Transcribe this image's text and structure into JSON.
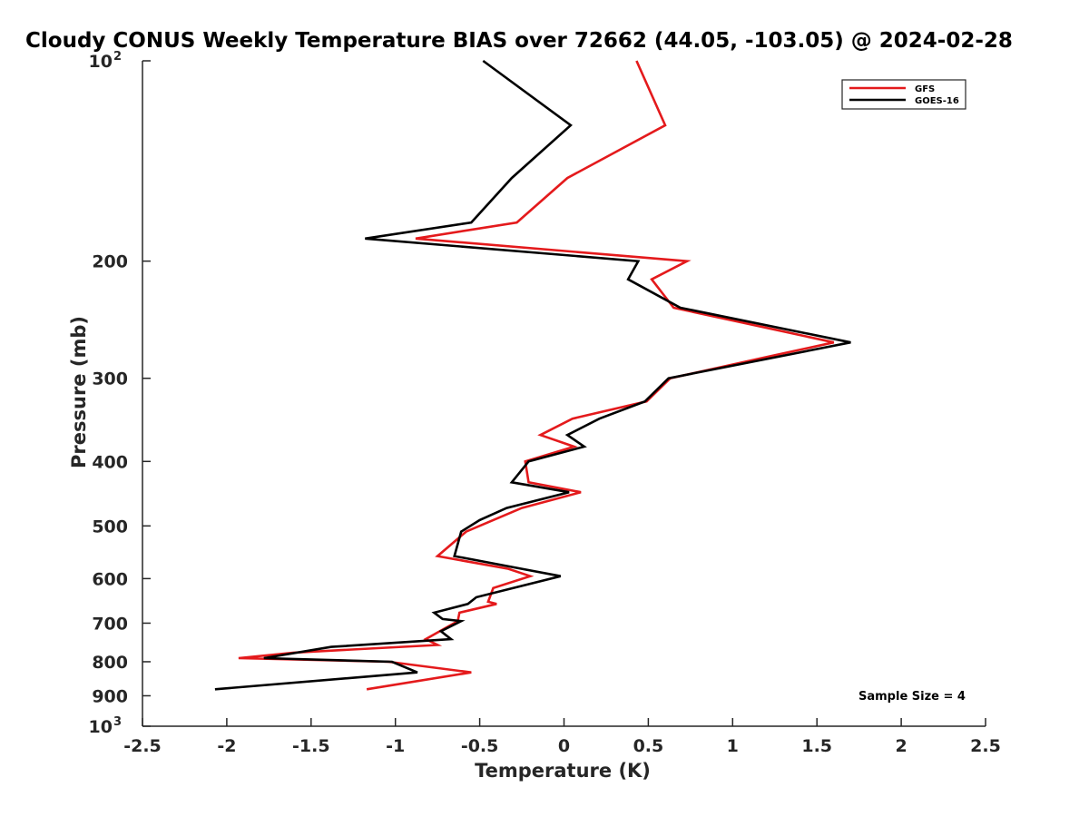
{
  "chart_data": {
    "type": "line",
    "title": "Cloudy CONUS Weekly Temperature BIAS over 72662 (44.05, -103.05) @ 2024-02-28",
    "xlabel": "Temperature (K)",
    "ylabel": "Pressure (mb)",
    "xlim": [
      -2.5,
      2.5
    ],
    "ylim": [
      100,
      1000
    ],
    "y_scale": "log",
    "y_reversed": true,
    "grid": false,
    "legend_position": "top-right",
    "x_ticks": [
      {
        "value": -2.5,
        "label": "-2.5"
      },
      {
        "value": -2,
        "label": "-2"
      },
      {
        "value": -1.5,
        "label": "-1.5"
      },
      {
        "value": -1,
        "label": "-1"
      },
      {
        "value": -0.5,
        "label": "-0.5"
      },
      {
        "value": 0,
        "label": "0"
      },
      {
        "value": 0.5,
        "label": "0.5"
      },
      {
        "value": 1,
        "label": "1"
      },
      {
        "value": 1.5,
        "label": "1.5"
      },
      {
        "value": 2,
        "label": "2"
      },
      {
        "value": 2.5,
        "label": "2.5"
      }
    ],
    "y_ticks": [
      {
        "value": 100,
        "base": "10",
        "exp": "2"
      },
      {
        "value": 200,
        "label": "200"
      },
      {
        "value": 300,
        "label": "300"
      },
      {
        "value": 400,
        "label": "400"
      },
      {
        "value": 500,
        "label": "500"
      },
      {
        "value": 600,
        "label": "600"
      },
      {
        "value": 700,
        "label": "700"
      },
      {
        "value": 800,
        "label": "800"
      },
      {
        "value": 900,
        "label": "900"
      },
      {
        "value": 1000,
        "base": "10",
        "exp": "3"
      }
    ],
    "series": [
      {
        "name": "GFS",
        "color": "#e41a1c",
        "points": [
          [
            0.43,
            100
          ],
          [
            0.6,
            125
          ],
          [
            0.02,
            150
          ],
          [
            -0.28,
            175
          ],
          [
            -0.88,
            185
          ],
          [
            0.73,
            200
          ],
          [
            0.52,
            213
          ],
          [
            0.65,
            235
          ],
          [
            1.6,
            265
          ],
          [
            1.22,
            278
          ],
          [
            0.63,
            300
          ],
          [
            0.49,
            325
          ],
          [
            0.05,
            345
          ],
          [
            -0.14,
            365
          ],
          [
            0.06,
            380
          ],
          [
            -0.23,
            400
          ],
          [
            -0.21,
            430
          ],
          [
            0.1,
            445
          ],
          [
            -0.25,
            470
          ],
          [
            -0.42,
            490
          ],
          [
            -0.58,
            510
          ],
          [
            -0.75,
            555
          ],
          [
            -0.33,
            580
          ],
          [
            -0.2,
            595
          ],
          [
            -0.42,
            620
          ],
          [
            -0.45,
            650
          ],
          [
            -0.4,
            655
          ],
          [
            -0.62,
            675
          ],
          [
            -0.63,
            695
          ],
          [
            -0.82,
            740
          ],
          [
            -0.75,
            755
          ],
          [
            -1.6,
            775
          ],
          [
            -1.93,
            790
          ],
          [
            -1.04,
            800
          ],
          [
            -0.55,
            830
          ],
          [
            -1.17,
            880
          ]
        ]
      },
      {
        "name": "GOES-16",
        "color": "#000000",
        "points": [
          [
            -0.48,
            100
          ],
          [
            0.04,
            125
          ],
          [
            -0.31,
            150
          ],
          [
            -0.55,
            175
          ],
          [
            -1.18,
            185
          ],
          [
            0.44,
            200
          ],
          [
            0.38,
            213
          ],
          [
            0.69,
            235
          ],
          [
            1.7,
            265
          ],
          [
            0.62,
            300
          ],
          [
            0.48,
            325
          ],
          [
            0.21,
            345
          ],
          [
            0.02,
            365
          ],
          [
            0.12,
            380
          ],
          [
            -0.21,
            400
          ],
          [
            -0.31,
            430
          ],
          [
            0.03,
            445
          ],
          [
            -0.34,
            470
          ],
          [
            -0.5,
            490
          ],
          [
            -0.61,
            510
          ],
          [
            -0.65,
            555
          ],
          [
            -0.25,
            580
          ],
          [
            -0.02,
            595
          ],
          [
            -0.52,
            640
          ],
          [
            -0.57,
            655
          ],
          [
            -0.77,
            675
          ],
          [
            -0.72,
            690
          ],
          [
            -0.61,
            695
          ],
          [
            -0.73,
            720
          ],
          [
            -0.67,
            740
          ],
          [
            -1.38,
            760
          ],
          [
            -1.78,
            790
          ],
          [
            -1.02,
            800
          ],
          [
            -0.87,
            830
          ],
          [
            -2.07,
            880
          ]
        ]
      }
    ],
    "annotations": [
      {
        "text": "Sample Size = 4",
        "position": "bottom-right"
      }
    ]
  }
}
